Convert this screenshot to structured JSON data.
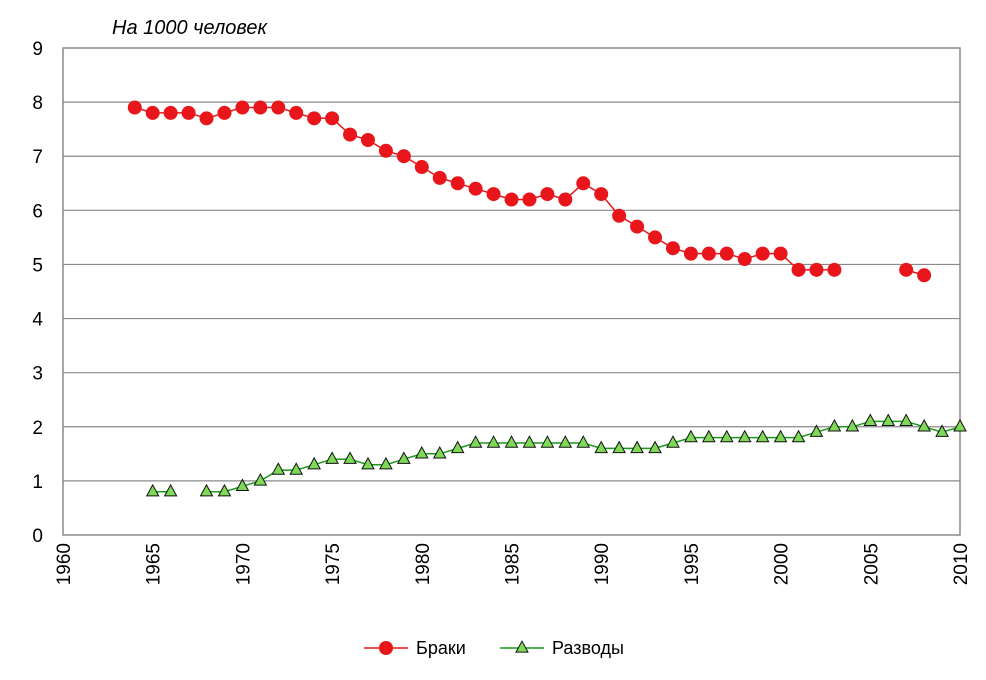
{
  "chart_data": {
    "type": "line",
    "unit_label": "На 1000 человек",
    "xlim": [
      1960,
      2010
    ],
    "ylim": [
      0,
      9
    ],
    "x_ticks": [
      "1960",
      "1965",
      "1970",
      "1975",
      "1980",
      "1985",
      "1990",
      "1995",
      "2000",
      "2005",
      "2010"
    ],
    "y_ticks": [
      "0",
      "1",
      "2",
      "3",
      "4",
      "5",
      "6",
      "7",
      "8",
      "9"
    ],
    "grid": true,
    "legend_position": "bottom",
    "series": [
      {
        "name": "Браки",
        "color": "#e8161b",
        "marker": "circle",
        "points": [
          [
            1964,
            7.9
          ],
          [
            1965,
            7.8
          ],
          [
            1966,
            7.8
          ],
          [
            1967,
            7.8
          ],
          [
            1968,
            7.7
          ],
          [
            1969,
            7.8
          ],
          [
            1970,
            7.9
          ],
          [
            1971,
            7.9
          ],
          [
            1972,
            7.9
          ],
          [
            1973,
            7.8
          ],
          [
            1974,
            7.7
          ],
          [
            1975,
            7.7
          ],
          [
            1976,
            7.4
          ],
          [
            1977,
            7.3
          ],
          [
            1978,
            7.1
          ],
          [
            1979,
            7.0
          ],
          [
            1980,
            6.8
          ],
          [
            1981,
            6.6
          ],
          [
            1982,
            6.5
          ],
          [
            1983,
            6.4
          ],
          [
            1984,
            6.3
          ],
          [
            1985,
            6.2
          ],
          [
            1986,
            6.2
          ],
          [
            1987,
            6.3
          ],
          [
            1988,
            6.2
          ],
          [
            1989,
            6.5
          ],
          [
            1990,
            6.3
          ],
          [
            1991,
            5.9
          ],
          [
            1992,
            5.7
          ],
          [
            1993,
            5.5
          ],
          [
            1994,
            5.3
          ],
          [
            1995,
            5.2
          ],
          [
            1996,
            5.2
          ],
          [
            1997,
            5.2
          ],
          [
            1998,
            5.1
          ],
          [
            1999,
            5.2
          ],
          [
            2000,
            5.2
          ],
          [
            2001,
            4.9
          ],
          [
            2002,
            4.9
          ],
          [
            2003,
            4.9
          ],
          null,
          null,
          null,
          [
            2007,
            4.9
          ],
          [
            2008,
            4.8
          ]
        ]
      },
      {
        "name": "Разводы",
        "color": "#1a9a1a",
        "marker_fill": "#7ed957",
        "marker": "triangle",
        "points": [
          [
            1965,
            0.8
          ],
          [
            1966,
            0.8
          ],
          null,
          [
            1968,
            0.8
          ],
          [
            1969,
            0.8
          ],
          [
            1970,
            0.9
          ],
          [
            1971,
            1.0
          ],
          [
            1972,
            1.2
          ],
          [
            1973,
            1.2
          ],
          [
            1974,
            1.3
          ],
          [
            1975,
            1.4
          ],
          [
            1976,
            1.4
          ],
          [
            1977,
            1.3
          ],
          [
            1978,
            1.3
          ],
          [
            1979,
            1.4
          ],
          [
            1980,
            1.5
          ],
          [
            1981,
            1.5
          ],
          [
            1982,
            1.6
          ],
          [
            1983,
            1.7
          ],
          [
            1984,
            1.7
          ],
          [
            1985,
            1.7
          ],
          [
            1986,
            1.7
          ],
          [
            1987,
            1.7
          ],
          [
            1988,
            1.7
          ],
          [
            1989,
            1.7
          ],
          [
            1990,
            1.6
          ],
          [
            1991,
            1.6
          ],
          [
            1992,
            1.6
          ],
          [
            1993,
            1.6
          ],
          [
            1994,
            1.7
          ],
          [
            1995,
            1.8
          ],
          [
            1996,
            1.8
          ],
          [
            1997,
            1.8
          ],
          [
            1998,
            1.8
          ],
          [
            1999,
            1.8
          ],
          [
            2000,
            1.8
          ],
          [
            2001,
            1.8
          ],
          [
            2002,
            1.9
          ],
          [
            2003,
            2.0
          ],
          [
            2004,
            2.0
          ],
          [
            2005,
            2.1
          ],
          [
            2006,
            2.1
          ],
          [
            2007,
            2.1
          ],
          [
            2008,
            2.0
          ],
          [
            2009,
            1.9
          ],
          [
            2010,
            2.0
          ]
        ]
      }
    ]
  }
}
